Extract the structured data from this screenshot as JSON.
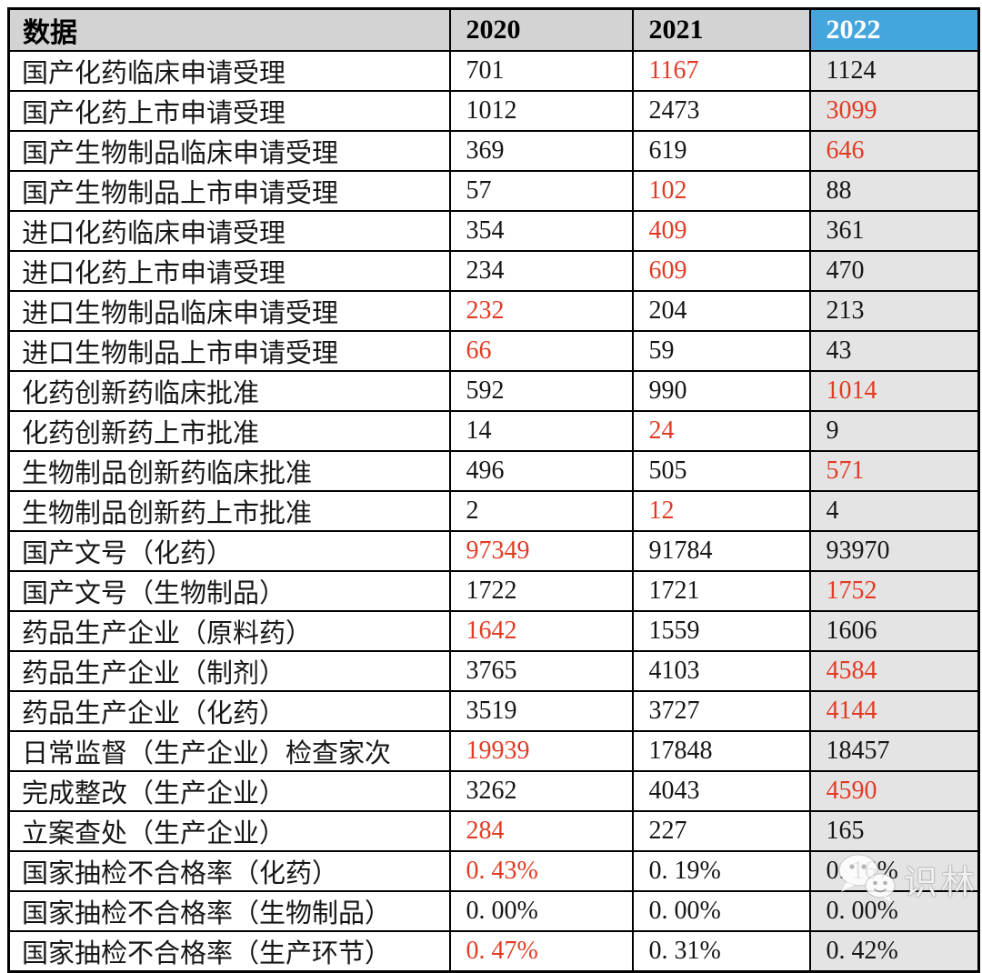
{
  "table": {
    "header": {
      "label": "数据",
      "years": [
        "2020",
        "2021",
        "2022"
      ],
      "highlight_year": "2022"
    },
    "rows": [
      {
        "label": "国产化药临床申请受理",
        "values": [
          "701",
          "1167",
          "1124"
        ],
        "red": [
          false,
          true,
          false
        ]
      },
      {
        "label": "国产化药上市申请受理",
        "values": [
          "1012",
          "2473",
          "3099"
        ],
        "red": [
          false,
          false,
          true
        ]
      },
      {
        "label": "国产生物制品临床申请受理",
        "values": [
          "369",
          "619",
          "646"
        ],
        "red": [
          false,
          false,
          true
        ]
      },
      {
        "label": "国产生物制品上市申请受理",
        "values": [
          "57",
          "102",
          "88"
        ],
        "red": [
          false,
          true,
          false
        ]
      },
      {
        "label": "进口化药临床申请受理",
        "values": [
          "354",
          "409",
          "361"
        ],
        "red": [
          false,
          true,
          false
        ]
      },
      {
        "label": "进口化药上市申请受理",
        "values": [
          "234",
          "609",
          "470"
        ],
        "red": [
          false,
          true,
          false
        ]
      },
      {
        "label": "进口生物制品临床申请受理",
        "values": [
          "232",
          "204",
          "213"
        ],
        "red": [
          true,
          false,
          false
        ]
      },
      {
        "label": "进口生物制品上市申请受理",
        "values": [
          "66",
          "59",
          "43"
        ],
        "red": [
          true,
          false,
          false
        ]
      },
      {
        "label": "化药创新药临床批准",
        "values": [
          "592",
          "990",
          "1014"
        ],
        "red": [
          false,
          false,
          true
        ]
      },
      {
        "label": "化药创新药上市批准",
        "values": [
          "14",
          "24",
          "9"
        ],
        "red": [
          false,
          true,
          false
        ]
      },
      {
        "label": "生物制品创新药临床批准",
        "values": [
          "496",
          "505",
          "571"
        ],
        "red": [
          false,
          false,
          true
        ]
      },
      {
        "label": "生物制品创新药上市批准",
        "values": [
          "2",
          "12",
          "4"
        ],
        "red": [
          false,
          true,
          false
        ]
      },
      {
        "label": "国产文号（化药）",
        "values": [
          "97349",
          "91784",
          "93970"
        ],
        "red": [
          true,
          false,
          false
        ]
      },
      {
        "label": "国产文号（生物制品）",
        "values": [
          "1722",
          "1721",
          "1752"
        ],
        "red": [
          false,
          false,
          true
        ]
      },
      {
        "label": "药品生产企业（原料药）",
        "values": [
          "1642",
          "1559",
          "1606"
        ],
        "red": [
          true,
          false,
          false
        ]
      },
      {
        "label": "药品生产企业（制剂）",
        "values": [
          "3765",
          "4103",
          "4584"
        ],
        "red": [
          false,
          false,
          true
        ]
      },
      {
        "label": "药品生产企业（化药）",
        "values": [
          "3519",
          "3727",
          "4144"
        ],
        "red": [
          false,
          false,
          true
        ]
      },
      {
        "label": "日常监督（生产企业）检查家次",
        "values": [
          "19939",
          "17848",
          "18457"
        ],
        "red": [
          true,
          false,
          false
        ]
      },
      {
        "label": "完成整改（生产企业）",
        "values": [
          "3262",
          "4043",
          "4590"
        ],
        "red": [
          false,
          false,
          true
        ]
      },
      {
        "label": "立案查处（生产企业）",
        "values": [
          "284",
          "227",
          "165"
        ],
        "red": [
          true,
          false,
          false
        ]
      },
      {
        "label": "国家抽检不合格率（化药）",
        "values": [
          "0. 43%",
          "0. 19%",
          "0. 16%"
        ],
        "red": [
          true,
          false,
          false
        ]
      },
      {
        "label": "国家抽检不合格率（生物制品）",
        "values": [
          "0. 00%",
          "0. 00%",
          "0. 00%"
        ],
        "red": [
          false,
          false,
          false
        ]
      },
      {
        "label": "国家抽检不合格率（生产环节）",
        "values": [
          "0. 47%",
          "0. 31%",
          "0. 42%"
        ],
        "red": [
          true,
          false,
          false
        ]
      }
    ]
  },
  "watermark": {
    "text": "识林",
    "logo": "wechat-bubbles-icon"
  },
  "colors": {
    "header_bg": "#d3d3d3",
    "highlight_header_bg": "#45a6de",
    "highlight_header_text": "#ffffff",
    "highlight_col_bg": "#e4e4e4",
    "red": "#e23b25",
    "border": "#000000",
    "text": "#161616"
  },
  "chart_data": {
    "type": "table",
    "title": "数据",
    "categories": [
      "2020",
      "2021",
      "2022"
    ],
    "highlighted_column": "2022",
    "red_means": "row maximum highlighted in red",
    "series": [
      {
        "name": "国产化药临床申请受理",
        "values": [
          701,
          1167,
          1124
        ]
      },
      {
        "name": "国产化药上市申请受理",
        "values": [
          1012,
          2473,
          3099
        ]
      },
      {
        "name": "国产生物制品临床申请受理",
        "values": [
          369,
          619,
          646
        ]
      },
      {
        "name": "国产生物制品上市申请受理",
        "values": [
          57,
          102,
          88
        ]
      },
      {
        "name": "进口化药临床申请受理",
        "values": [
          354,
          409,
          361
        ]
      },
      {
        "name": "进口化药上市申请受理",
        "values": [
          234,
          609,
          470
        ]
      },
      {
        "name": "进口生物制品临床申请受理",
        "values": [
          232,
          204,
          213
        ]
      },
      {
        "name": "进口生物制品上市申请受理",
        "values": [
          66,
          59,
          43
        ]
      },
      {
        "name": "化药创新药临床批准",
        "values": [
          592,
          990,
          1014
        ]
      },
      {
        "name": "化药创新药上市批准",
        "values": [
          14,
          24,
          9
        ]
      },
      {
        "name": "生物制品创新药临床批准",
        "values": [
          496,
          505,
          571
        ]
      },
      {
        "name": "生物制品创新药上市批准",
        "values": [
          2,
          12,
          4
        ]
      },
      {
        "name": "国产文号（化药）",
        "values": [
          97349,
          91784,
          93970
        ]
      },
      {
        "name": "国产文号（生物制品）",
        "values": [
          1722,
          1721,
          1752
        ]
      },
      {
        "name": "药品生产企业（原料药）",
        "values": [
          1642,
          1559,
          1606
        ]
      },
      {
        "name": "药品生产企业（制剂）",
        "values": [
          3765,
          4103,
          4584
        ]
      },
      {
        "name": "药品生产企业（化药）",
        "values": [
          3519,
          3727,
          4144
        ]
      },
      {
        "name": "日常监督（生产企业）检查家次",
        "values": [
          19939,
          17848,
          18457
        ]
      },
      {
        "name": "完成整改（生产企业）",
        "values": [
          3262,
          4043,
          4590
        ]
      },
      {
        "name": "立案查处（生产企业）",
        "values": [
          284,
          227,
          165
        ]
      },
      {
        "name": "国家抽检不合格率（化药）",
        "values": [
          "0.43%",
          "0.19%",
          "0.16%"
        ]
      },
      {
        "name": "国家抽检不合格率（生物制品）",
        "values": [
          "0.00%",
          "0.00%",
          "0.00%"
        ]
      },
      {
        "name": "国家抽检不合格率（生产环节）",
        "values": [
          "0.47%",
          "0.31%",
          "0.42%"
        ]
      }
    ]
  }
}
